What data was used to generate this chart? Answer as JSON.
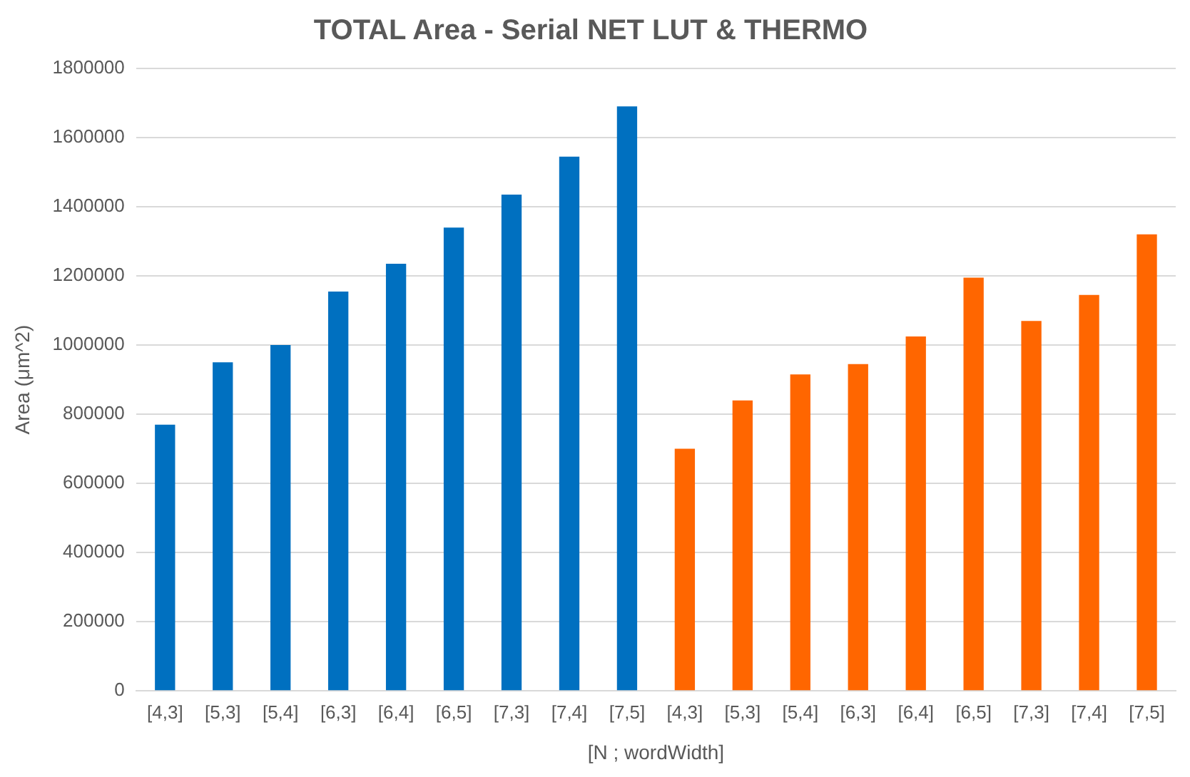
{
  "chart_data": {
    "type": "bar",
    "title": "TOTAL Area - Serial NET LUT & THERMO",
    "xlabel": "[N ; wordWidth]",
    "ylabel": "Area (μm^2)",
    "categories": [
      "[4,3]",
      "[5,3]",
      "[5,4]",
      "[6,3]",
      "[6,4]",
      "[6,5]",
      "[7,3]",
      "[7,4]",
      "[7,5]",
      "[4,3]",
      "[5,3]",
      "[5,4]",
      "[6,3]",
      "[6,4]",
      "[6,5]",
      "[7,3]",
      "[7,4]",
      "[7,5]"
    ],
    "series": [
      {
        "color": "#0070c0",
        "values": [
          770000,
          950000,
          1000000,
          1155000,
          1235000,
          1340000,
          1435000,
          1545000,
          1690000,
          null,
          null,
          null,
          null,
          null,
          null,
          null,
          null,
          null
        ]
      },
      {
        "color": "#ff6600",
        "values": [
          null,
          null,
          null,
          null,
          null,
          null,
          null,
          null,
          null,
          700000,
          840000,
          915000,
          945000,
          1025000,
          1195000,
          1070000,
          1145000,
          1320000
        ]
      }
    ],
    "ylim": [
      0,
      1800000
    ],
    "yticks": [
      0,
      200000,
      400000,
      600000,
      800000,
      1000000,
      1200000,
      1400000,
      1600000,
      1800000
    ],
    "grid": "y",
    "legend": false
  }
}
